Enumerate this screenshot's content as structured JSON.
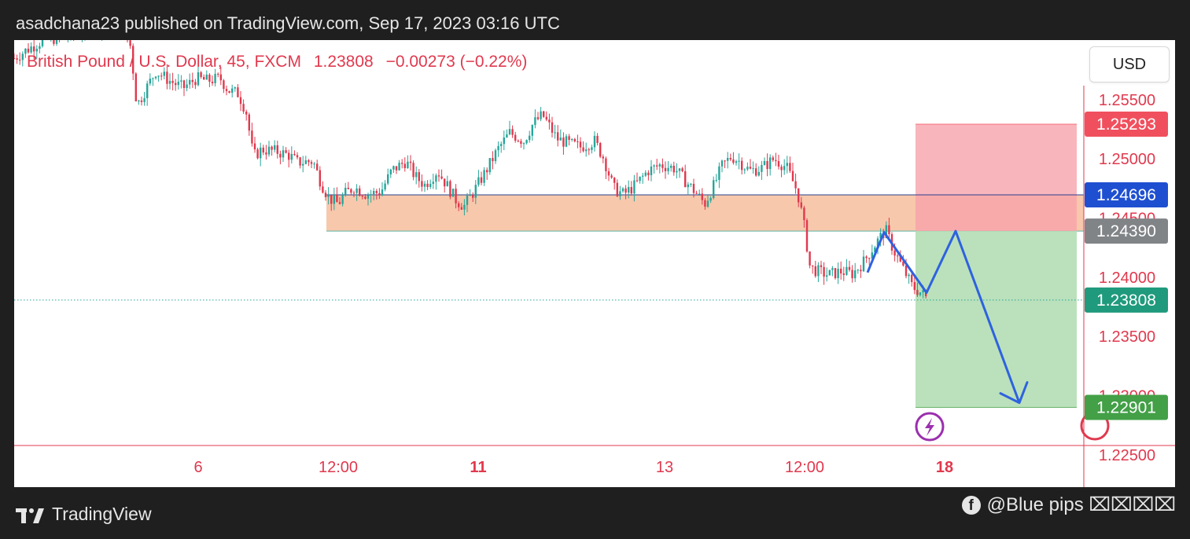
{
  "header": {
    "published_line": "asadchana23 published on TradingView.com, Sep 17, 2023 03:16 UTC"
  },
  "symbol": {
    "name": "British Pound / U.S. Dollar, 45, FXCM",
    "last": "1.23808",
    "change": "−0.00273 (−0.22%)"
  },
  "currency_button": "USD",
  "footer": {
    "brand": "TradingView",
    "credit": "@Blue pips ⌧⌧⌧⌧"
  },
  "colors": {
    "up": "#26a69a",
    "down": "#e0394e",
    "axis_text": "#e0394e",
    "zone": "#f7c5a8",
    "stop_zone": "#fbb3bb",
    "target_zone": "#b6dfb7",
    "projection": "#2e62e0",
    "stop_label": "#f0505e",
    "resistance_label": "#1f4fd1",
    "entry_label": "#808487",
    "current_label": "#1f9a7c",
    "target_label": "#43a047"
  },
  "chart_data": {
    "type": "candlestick",
    "title": "British Pound / U.S. Dollar, 45, FXCM",
    "ylim": [
      1.2242,
      1.2595
    ],
    "y_ticks": [
      "1.25500",
      "1.25000",
      "1.24500",
      "1.24000",
      "1.23500",
      "1.23000",
      "1.22500"
    ],
    "x_ticks": [
      {
        "label": "6",
        "bold": false
      },
      {
        "label": "12:00",
        "bold": false
      },
      {
        "label": "11",
        "bold": true
      },
      {
        "label": "13",
        "bold": false
      },
      {
        "label": "12:00",
        "bold": false
      },
      {
        "label": "18",
        "bold": true
      }
    ],
    "path": [
      [
        0,
        1.2585
      ],
      [
        16,
        1.2592
      ],
      [
        36,
        1.26
      ],
      [
        70,
        1.2604
      ],
      [
        100,
        1.2612
      ],
      [
        135,
        1.2612
      ],
      [
        148,
        1.2595
      ],
      [
        156,
        1.2545
      ],
      [
        170,
        1.2562
      ],
      [
        180,
        1.2574
      ],
      [
        200,
        1.2565
      ],
      [
        215,
        1.256
      ],
      [
        232,
        1.2568
      ],
      [
        245,
        1.2566
      ],
      [
        262,
        1.2568
      ],
      [
        272,
        1.2558
      ],
      [
        285,
        1.2555
      ],
      [
        295,
        1.254
      ],
      [
        304,
        1.2502
      ],
      [
        315,
        1.2508
      ],
      [
        335,
        1.2506
      ],
      [
        350,
        1.2503
      ],
      [
        360,
        1.2497
      ],
      [
        380,
        1.2498
      ],
      [
        390,
        1.248
      ],
      [
        400,
        1.2467
      ],
      [
        412,
        1.2462
      ],
      [
        420,
        1.247
      ],
      [
        432,
        1.2476
      ],
      [
        448,
        1.247
      ],
      [
        466,
        1.2472
      ],
      [
        480,
        1.249
      ],
      [
        498,
        1.2498
      ],
      [
        510,
        1.2485
      ],
      [
        522,
        1.2478
      ],
      [
        538,
        1.249
      ],
      [
        550,
        1.2478
      ],
      [
        562,
        1.2465
      ],
      [
        572,
        1.246
      ],
      [
        583,
        1.2471
      ],
      [
        600,
        1.249
      ],
      [
        615,
        1.2508
      ],
      [
        630,
        1.2522
      ],
      [
        648,
        1.2515
      ],
      [
        660,
        1.253
      ],
      [
        672,
        1.2537
      ],
      [
        690,
        1.2517
      ],
      [
        705,
        1.2513
      ],
      [
        720,
        1.251
      ],
      [
        738,
        1.2515
      ],
      [
        750,
        1.25
      ],
      [
        762,
        1.2475
      ],
      [
        775,
        1.247
      ],
      [
        790,
        1.2478
      ],
      [
        806,
        1.249
      ],
      [
        822,
        1.2495
      ],
      [
        840,
        1.2492
      ],
      [
        855,
        1.248
      ],
      [
        866,
        1.2472
      ],
      [
        878,
        1.2462
      ],
      [
        890,
        1.2478
      ],
      [
        900,
        1.2494
      ],
      [
        912,
        1.2502
      ],
      [
        922,
        1.2498
      ],
      [
        935,
        1.249
      ],
      [
        950,
        1.2492
      ],
      [
        966,
        1.25
      ],
      [
        982,
        1.2493
      ],
      [
        996,
        1.2472
      ],
      [
        1004,
        1.2445
      ],
      [
        1012,
        1.2408
      ],
      [
        1022,
        1.2405
      ],
      [
        1035,
        1.2402
      ],
      [
        1052,
        1.2405
      ],
      [
        1066,
        1.2403
      ],
      [
        1080,
        1.2413
      ],
      [
        1095,
        1.2428
      ],
      [
        1108,
        1.244
      ],
      [
        1118,
        1.2423
      ],
      [
        1128,
        1.241
      ],
      [
        1142,
        1.2392
      ],
      [
        1155,
        1.2386
      ],
      [
        1162,
        1.2381
      ]
    ],
    "key_zone": {
      "top": 1.24696,
      "bottom": 1.2439
    },
    "resistance_line": 1.24696,
    "current_price": 1.23808,
    "position": {
      "entry": 1.2439,
      "stop": 1.25293,
      "target": 1.22901
    },
    "projection": [
      [
        1085,
        1.2404
      ],
      [
        1106,
        1.2438
      ],
      [
        1160,
        1.2387
      ],
      [
        1197,
        1.2439
      ],
      [
        1278,
        1.2294
      ]
    ],
    "price_labels": [
      {
        "key": "stop",
        "text": "1.25293",
        "value": 1.25293
      },
      {
        "key": "resistance",
        "text": "1.24696",
        "value": 1.24696
      },
      {
        "key": "entry",
        "text": "1.24390",
        "value": 1.2439
      },
      {
        "key": "current",
        "text": "1.23808",
        "value": 1.23808
      },
      {
        "key": "target",
        "text": "1.22901",
        "value": 1.22901
      }
    ]
  }
}
